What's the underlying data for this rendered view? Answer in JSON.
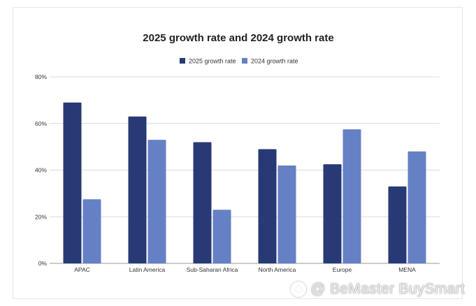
{
  "colors": {
    "series_2025": "#283a75",
    "series_2024": "#6580c4"
  },
  "watermark": {
    "text": "@ BeMaster BuySmart",
    "icon": "bemaster-logo-icon"
  },
  "chart_data": {
    "type": "bar",
    "title": "2025 growth rate and 2024 growth rate",
    "categories": [
      "APAC",
      "Latin America",
      "Sub-Saharan Africa",
      "North America",
      "Europe",
      "MENA"
    ],
    "series": [
      {
        "name": "2025 growth rate",
        "values": [
          69,
          63,
          52,
          49,
          42.5,
          33
        ]
      },
      {
        "name": "2024 growth rate",
        "values": [
          27.5,
          53,
          23,
          42,
          57.5,
          48
        ]
      }
    ],
    "ylim": [
      0,
      80
    ],
    "yticks": [
      0,
      20,
      40,
      60,
      80
    ],
    "ytick_labels": [
      "0%",
      "20%",
      "40%",
      "60%",
      "80%"
    ],
    "grid": true,
    "legend": "top-center"
  }
}
